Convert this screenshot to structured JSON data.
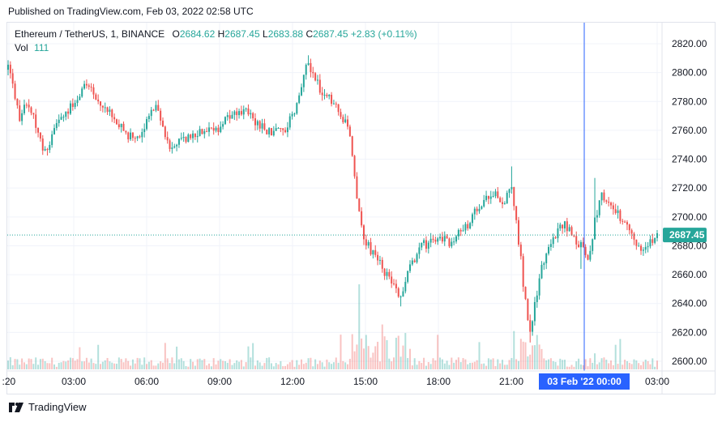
{
  "header": {
    "published": "Published on TradingView.com, Feb 03, 2022 02:58 UTC"
  },
  "legend": {
    "symbol": "Ethereum / TetherUS, 1, BINANCE",
    "o_label": "O",
    "o_value": "2684.62",
    "h_label": "H",
    "h_value": "2687.45",
    "l_label": "L",
    "l_value": "2683.88",
    "c_label": "C",
    "c_value": "2687.45",
    "change": "+2.83 (+0.11%)",
    "vol_label": "Vol",
    "vol_value": "111"
  },
  "footer": {
    "brand": "TradingView"
  },
  "colors": {
    "up": "#26a69a",
    "down": "#ef5350",
    "crosshair": "#2962ff",
    "last_price_bg": "#26a69a"
  },
  "chart_data": {
    "type": "candlestick",
    "title": "Ethereum / TetherUS, 1, BINANCE",
    "y_ticks": [
      "2820.00",
      "2800.00",
      "2780.00",
      "2760.00",
      "2740.00",
      "2720.00",
      "2700.00",
      "2680.00",
      "2660.00",
      "2640.00",
      "2620.00",
      "2600.00"
    ],
    "y_min": 2594,
    "y_max": 2828,
    "x_ticks": [
      ":20",
      "03:00",
      "06:00",
      "09:00",
      "12:00",
      "15:00",
      "18:00",
      "21:00",
      "03:00"
    ],
    "crosshair_time_label": "03 Feb '22   00:00",
    "last_price_label": "2687.45",
    "last_price": 2687.45,
    "price_path": [
      {
        "t": 0,
        "p": 2802
      },
      {
        "t": 3,
        "p": 2785
      },
      {
        "t": 5,
        "p": 2768
      },
      {
        "t": 8,
        "p": 2778
      },
      {
        "t": 11,
        "p": 2770
      },
      {
        "t": 15,
        "p": 2745
      },
      {
        "t": 18,
        "p": 2752
      },
      {
        "t": 22,
        "p": 2768
      },
      {
        "t": 26,
        "p": 2775
      },
      {
        "t": 30,
        "p": 2780
      },
      {
        "t": 34,
        "p": 2792
      },
      {
        "t": 38,
        "p": 2783
      },
      {
        "t": 42,
        "p": 2775
      },
      {
        "t": 46,
        "p": 2768
      },
      {
        "t": 50,
        "p": 2760
      },
      {
        "t": 55,
        "p": 2752
      },
      {
        "t": 60,
        "p": 2765
      },
      {
        "t": 64,
        "p": 2778
      },
      {
        "t": 67,
        "p": 2760
      },
      {
        "t": 70,
        "p": 2748
      },
      {
        "t": 75,
        "p": 2752
      },
      {
        "t": 80,
        "p": 2755
      },
      {
        "t": 85,
        "p": 2762
      },
      {
        "t": 90,
        "p": 2760
      },
      {
        "t": 95,
        "p": 2770
      },
      {
        "t": 100,
        "p": 2775
      },
      {
        "t": 105,
        "p": 2770
      },
      {
        "t": 110,
        "p": 2762
      },
      {
        "t": 115,
        "p": 2758
      },
      {
        "t": 120,
        "p": 2762
      },
      {
        "t": 124,
        "p": 2775
      },
      {
        "t": 127,
        "p": 2790
      },
      {
        "t": 130,
        "p": 2808
      },
      {
        "t": 133,
        "p": 2795
      },
      {
        "t": 137,
        "p": 2783
      },
      {
        "t": 141,
        "p": 2780
      },
      {
        "t": 144,
        "p": 2770
      },
      {
        "t": 147,
        "p": 2765
      },
      {
        "t": 149,
        "p": 2740
      },
      {
        "t": 151,
        "p": 2710
      },
      {
        "t": 154,
        "p": 2685
      },
      {
        "t": 158,
        "p": 2675
      },
      {
        "t": 162,
        "p": 2665
      },
      {
        "t": 166,
        "p": 2655
      },
      {
        "t": 170,
        "p": 2642
      },
      {
        "t": 173,
        "p": 2660
      },
      {
        "t": 176,
        "p": 2672
      },
      {
        "t": 179,
        "p": 2680
      },
      {
        "t": 183,
        "p": 2682
      },
      {
        "t": 187,
        "p": 2685
      },
      {
        "t": 191,
        "p": 2683
      },
      {
        "t": 195,
        "p": 2688
      },
      {
        "t": 199,
        "p": 2695
      },
      {
        "t": 203,
        "p": 2705
      },
      {
        "t": 207,
        "p": 2715
      },
      {
        "t": 211,
        "p": 2716
      },
      {
        "t": 215,
        "p": 2710
      },
      {
        "t": 218,
        "p": 2722
      },
      {
        "t": 220,
        "p": 2695
      },
      {
        "t": 222,
        "p": 2670
      },
      {
        "t": 224,
        "p": 2640
      },
      {
        "t": 226,
        "p": 2622
      },
      {
        "t": 228,
        "p": 2640
      },
      {
        "t": 230,
        "p": 2658
      },
      {
        "t": 233,
        "p": 2675
      },
      {
        "t": 237,
        "p": 2688
      },
      {
        "t": 241,
        "p": 2695
      },
      {
        "t": 245,
        "p": 2685
      },
      {
        "t": 248,
        "p": 2680
      },
      {
        "t": 251,
        "p": 2668
      },
      {
        "t": 254,
        "p": 2698
      },
      {
        "t": 257,
        "p": 2718
      },
      {
        "t": 261,
        "p": 2705
      },
      {
        "t": 265,
        "p": 2700
      },
      {
        "t": 269,
        "p": 2690
      },
      {
        "t": 273,
        "p": 2678
      },
      {
        "t": 277,
        "p": 2683
      },
      {
        "t": 281,
        "p": 2687.45
      }
    ],
    "high_spikes": [
      {
        "t": 130,
        "p": 2812
      },
      {
        "t": 218,
        "p": 2735
      },
      {
        "t": 254,
        "p": 2727
      }
    ],
    "low_spikes": [
      {
        "t": 15,
        "p": 2743
      },
      {
        "t": 170,
        "p": 2638
      },
      {
        "t": 226,
        "p": 2613
      },
      {
        "t": 248,
        "p": 2664
      }
    ],
    "time_range_hours": [
      0.5,
      28.7
    ],
    "crosshair_time": 24.0
  }
}
